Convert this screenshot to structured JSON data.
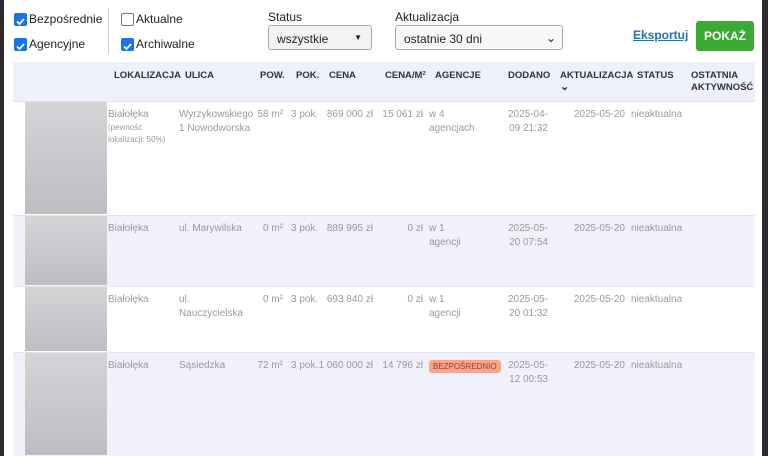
{
  "filters": {
    "checkboxes": [
      {
        "label": "Bezpośrednie",
        "checked": true
      },
      {
        "label": "Agencyjne",
        "checked": true
      },
      {
        "label": "Aktualne",
        "checked": false
      },
      {
        "label": "Archiwalne",
        "checked": true
      }
    ],
    "status": {
      "label": "Status",
      "value": "wszystkie"
    },
    "update": {
      "label": "Aktualizacja",
      "value": "ostatnie 30 dni"
    },
    "export": "Eksportuj",
    "submit": "POKAŻ"
  },
  "table": {
    "headers": [
      "LOKALIZACJA",
      "ULICA",
      "POW.",
      "POK.",
      "CENA",
      "CENA/M²",
      "AGENCJE",
      "DODANO",
      "AKTUALIZACJA",
      "STATUS",
      "OSTATNIA AKTYWNOŚĆ"
    ],
    "rows": [
      {
        "location": "Białołęka",
        "location_note": "(pewność lokalizacji: 50%)",
        "street": "Wyrzykowskiego 1 Nowodworska",
        "area": "58 m²",
        "rooms": "3 pok.",
        "price": "869 000 zł",
        "price_m2": "15 061 zł",
        "agencies": "w 4 agencjach",
        "added": "2025-04-09 21:32",
        "updated": "2025-05-20",
        "status": "nieaktualna"
      },
      {
        "location": "Białołęka",
        "street": "ul. Marywilska",
        "area": "0 m²",
        "rooms": "3 pok.",
        "price": "889 995 zł",
        "price_m2": "0 zł",
        "agencies": "w 1 agencji",
        "added": "2025-05-20 07:54",
        "updated": "2025-05-20",
        "status": "nieaktualna"
      },
      {
        "location": "Białołęka",
        "street": "ul. Nauczycielska",
        "area": "0 m²",
        "rooms": "3 pok.",
        "price": "693 840 zł",
        "price_m2": "0 zł",
        "agencies": "w 1 agencji",
        "added": "2025-05-20 01:32",
        "updated": "2025-05-20",
        "status": "nieaktualna"
      },
      {
        "location": "Białołęka",
        "street": "Sąsiedzka",
        "area": "72 m²",
        "rooms": "3 pok.",
        "price": "1 060 000 zł",
        "price_m2": "14 796 zł",
        "agencies_badge": "BEZPOŚREDNIO",
        "added": "2025-05-12 00:53",
        "updated": "2025-05-20",
        "status": "nieaktualna"
      }
    ]
  }
}
